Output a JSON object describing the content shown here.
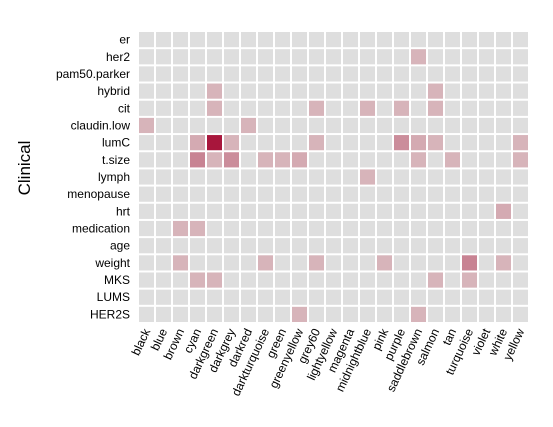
{
  "chart_data": {
    "type": "heatmap",
    "ylabel": "Clinical",
    "xlabel": "",
    "title": "",
    "rows": [
      "er",
      "her2",
      "pam50.parker",
      "hybrid",
      "cit",
      "claudin.low",
      "lumC",
      "t.size",
      "lymph",
      "menopause",
      "hrt",
      "medication",
      "age",
      "weight",
      "MKS",
      "LUMS",
      "HER2S"
    ],
    "columns": [
      "black",
      "blue",
      "brown",
      "cyan",
      "darkgreen",
      "darkgrey",
      "darkred",
      "darkturquoise",
      "green",
      "greenyellow",
      "grey60",
      "lightyellow",
      "magenta",
      "midnightblue",
      "pink",
      "purple",
      "saddlebrown",
      "salmon",
      "tan",
      "turquoise",
      "violet",
      "white",
      "yellow"
    ],
    "values": [
      [
        0,
        0,
        0,
        0,
        0,
        0,
        0,
        0,
        0,
        0,
        0,
        0,
        0,
        0,
        0,
        0,
        0,
        0,
        0,
        0,
        0,
        0,
        0
      ],
      [
        0,
        0,
        0,
        0,
        0,
        0,
        0,
        0,
        0,
        0,
        0,
        0,
        0,
        0,
        0,
        0,
        0.2,
        0,
        0,
        0,
        0,
        0,
        0
      ],
      [
        0,
        0,
        0,
        0,
        0,
        0,
        0,
        0,
        0,
        0,
        0,
        0,
        0,
        0,
        0,
        0,
        0,
        0,
        0,
        0,
        0,
        0,
        0
      ],
      [
        0,
        0,
        0,
        0,
        0.2,
        0,
        0,
        0,
        0,
        0,
        0,
        0,
        0,
        0,
        0,
        0,
        0,
        0.2,
        0,
        0,
        0,
        0,
        0
      ],
      [
        0,
        0,
        0,
        0,
        0.2,
        0,
        0,
        0,
        0,
        0,
        0.2,
        0,
        0,
        0.2,
        0,
        0.2,
        0,
        0.2,
        0,
        0,
        0,
        0,
        0
      ],
      [
        0.2,
        0,
        0,
        0,
        0,
        0,
        0.2,
        0,
        0,
        0,
        0,
        0,
        0,
        0,
        0,
        0,
        0,
        0,
        0,
        0,
        0,
        0,
        0
      ],
      [
        0,
        0,
        0,
        0.25,
        1.0,
        0.2,
        0,
        0,
        0,
        0,
        0.2,
        0,
        0,
        0,
        0,
        0.4,
        0.25,
        0.2,
        0,
        0,
        0,
        0,
        0.2
      ],
      [
        0,
        0,
        0,
        0.45,
        0.2,
        0.4,
        0,
        0.2,
        0.2,
        0.25,
        0,
        0,
        0,
        0,
        0,
        0,
        0.2,
        0,
        0.2,
        0,
        0,
        0,
        0.2
      ],
      [
        0,
        0,
        0,
        0,
        0,
        0,
        0,
        0,
        0,
        0,
        0,
        0,
        0,
        0.2,
        0,
        0,
        0,
        0,
        0,
        0,
        0,
        0,
        0
      ],
      [
        0,
        0,
        0,
        0,
        0,
        0,
        0,
        0,
        0,
        0,
        0,
        0,
        0,
        0,
        0,
        0,
        0,
        0,
        0,
        0,
        0,
        0,
        0
      ],
      [
        0,
        0,
        0,
        0,
        0,
        0,
        0,
        0,
        0,
        0,
        0,
        0,
        0,
        0,
        0,
        0,
        0,
        0,
        0,
        0,
        0,
        0.25,
        0
      ],
      [
        0,
        0,
        0.2,
        0.2,
        0,
        0,
        0,
        0,
        0,
        0,
        0,
        0,
        0,
        0,
        0,
        0,
        0,
        0,
        0,
        0,
        0,
        0,
        0
      ],
      [
        0,
        0,
        0,
        0,
        0,
        0,
        0,
        0,
        0,
        0,
        0,
        0,
        0,
        0,
        0,
        0,
        0,
        0,
        0,
        0,
        0,
        0,
        0
      ],
      [
        0,
        0,
        0.2,
        0,
        0,
        0,
        0,
        0.2,
        0,
        0,
        0.2,
        0,
        0,
        0,
        0.2,
        0,
        0,
        0,
        0,
        0.45,
        0,
        0.2,
        0
      ],
      [
        0,
        0,
        0,
        0.2,
        0.2,
        0,
        0,
        0,
        0,
        0,
        0,
        0,
        0,
        0,
        0,
        0,
        0,
        0.2,
        0,
        0.2,
        0,
        0,
        0
      ],
      [
        0,
        0,
        0,
        0,
        0,
        0,
        0,
        0,
        0,
        0,
        0,
        0,
        0,
        0,
        0,
        0,
        0,
        0,
        0,
        0,
        0,
        0,
        0
      ],
      [
        0,
        0,
        0,
        0,
        0,
        0,
        0,
        0,
        0,
        0.2,
        0,
        0,
        0,
        0,
        0,
        0,
        0.2,
        0,
        0,
        0,
        0,
        0,
        0
      ]
    ],
    "colors": {
      "empty": "#dedede",
      "low": "#d7b4ba",
      "high": "#a8163c",
      "grid": "#ffffff"
    },
    "grid": true,
    "legend": "none"
  }
}
